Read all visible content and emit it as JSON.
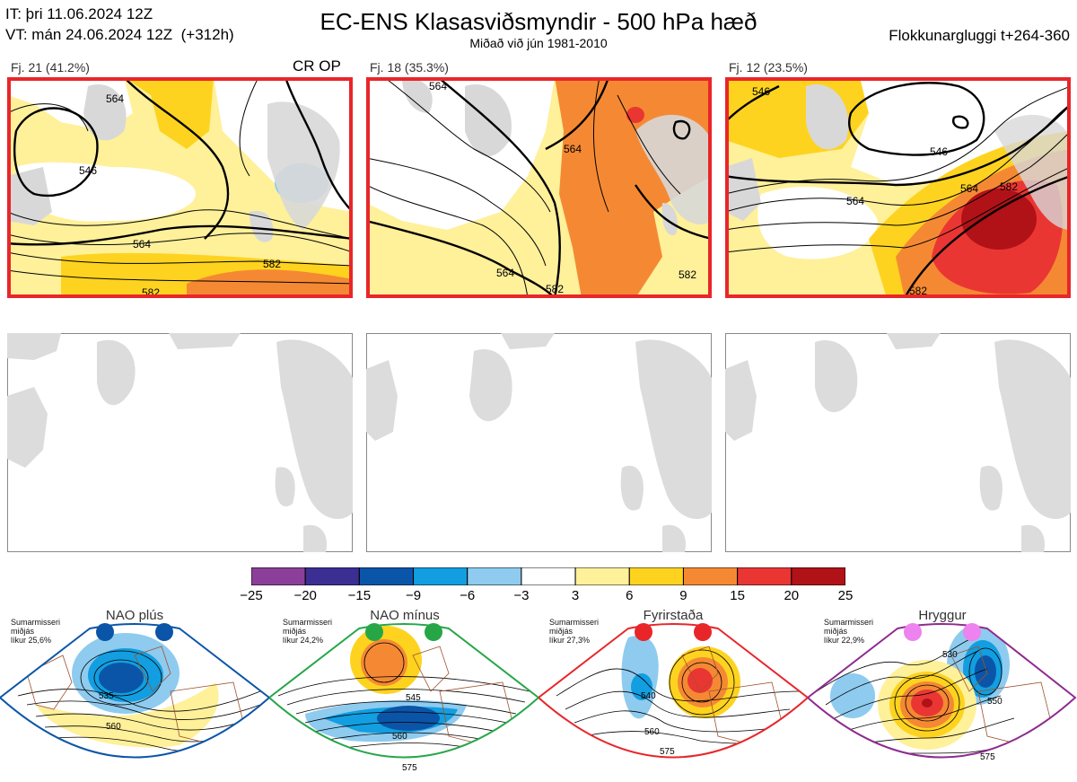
{
  "header": {
    "init_line": "IT: þri 11.06.2024 12Z",
    "valid_line": "VT: mán 24.06.2024 12Z  (+312h)",
    "title": "EC-ENS Klasasviðsmyndir - 500 hPa hæð",
    "subtitle": "Miðað við jún 1981-2010",
    "window": "Flokkunargluggi t+264-360"
  },
  "clusters": [
    {
      "label": "Fj. 21 (41.2%)",
      "tag": "CR OP",
      "contours": [
        "546",
        "564",
        "564",
        "582",
        "582"
      ]
    },
    {
      "label": "Fj. 18 (35.3%)",
      "tag": "",
      "contours": [
        "564",
        "564",
        "564",
        "582",
        "582"
      ]
    },
    {
      "label": "Fj. 12 (23.5%)",
      "tag": "",
      "contours": [
        "546",
        "546",
        "564",
        "564",
        "582",
        "582"
      ]
    }
  ],
  "colorbar": {
    "ticks": [
      "−25",
      "−20",
      "−15",
      "−9",
      "−6",
      "−3",
      "3",
      "6",
      "9",
      "15",
      "20",
      "25"
    ],
    "colors": [
      "#8b3f98",
      "#3b2f93",
      "#0b55a8",
      "#129ee0",
      "#8ecbef",
      "#ffffff",
      "#fff09a",
      "#fed31f",
      "#f58933",
      "#ea3633",
      "#b01217"
    ]
  },
  "regimes": [
    {
      "name": "NAO plús",
      "season": "Sumarmisseri",
      "label2": "miðjás",
      "prob": "líkur 25,6%",
      "color": "#0b55a8",
      "contours": [
        "535",
        "560"
      ]
    },
    {
      "name": "NAO mínus",
      "season": "Sumarmisseri",
      "label2": "miðjás",
      "prob": "líkur 24,2%",
      "color": "#27a648",
      "contours": [
        "545",
        "560",
        "575"
      ]
    },
    {
      "name": "Fyrirstaða",
      "season": "Sumarmisseri",
      "label2": "miðjás",
      "prob": "líkur 27,3%",
      "color": "#e8262a",
      "contours": [
        "540",
        "560",
        "575"
      ]
    },
    {
      "name": "Hryggur",
      "season": "Sumarmisseri",
      "label2": "miðjás",
      "prob": "líkur 22,9%",
      "color": "#8e2b8f",
      "contours": [
        "530",
        "550",
        "575"
      ]
    }
  ]
}
